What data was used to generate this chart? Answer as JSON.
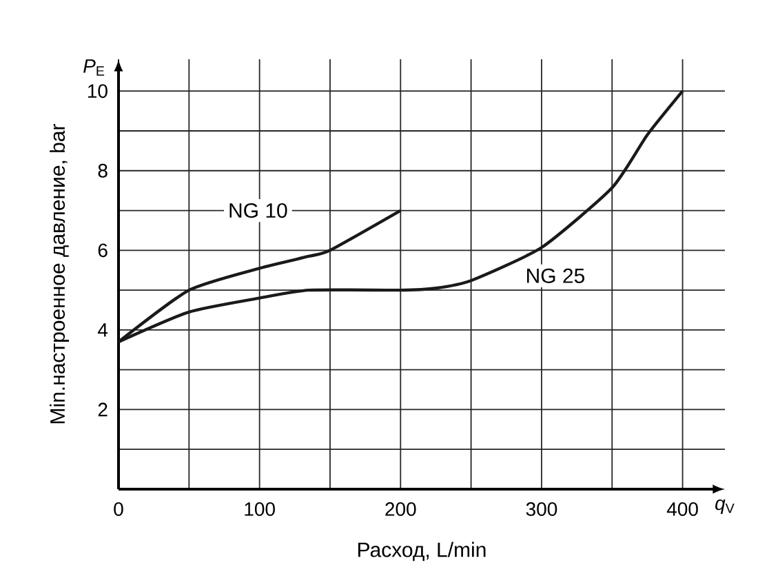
{
  "chart_data": {
    "type": "line",
    "xlabel": "Расход, L/min",
    "ylabel": "Min.настроенное давление, bar",
    "annotations": [
      "*P*$_{E}$",
      "*q*$_{V}$"
    ],
    "xlim": [
      0,
      430
    ],
    "ylim": [
      0,
      10.8
    ],
    "xticks": [
      0,
      {
        "value": 50,
        "label": null
      },
      100,
      {
        "value": 150,
        "label": null
      },
      200,
      {
        "value": 250,
        "label": null
      },
      300,
      {
        "value": 350,
        "label": null
      },
      400
    ],
    "yticks": [
      {
        "value": 1,
        "label": null
      },
      2,
      {
        "value": 3,
        "label": null
      },
      4,
      {
        "value": 5,
        "label": null
      },
      6,
      {
        "value": 7,
        "label": null
      },
      8,
      {
        "value": 9,
        "label": null
      },
      10
    ],
    "grid": true,
    "legend": false,
    "marker": "none",
    "line_style": "solid",
    "series": [
      {
        "name": "NG 10",
        "color": "#1a1a1a",
        "x": [
          0,
          50,
          100,
          135,
          150,
          200
        ],
        "values": [
          3.7,
          5.0,
          5.55,
          5.85,
          6.0,
          7.0
        ]
      },
      {
        "name": "NG 25",
        "color": "#1a1a1a",
        "x": [
          0,
          50,
          100,
          135,
          200,
          225,
          250,
          300,
          350,
          375,
          400
        ],
        "values": [
          3.7,
          4.45,
          4.8,
          5.0,
          5.0,
          5.05,
          5.24,
          6.07,
          7.57,
          8.9,
          10.0
        ]
      }
    ]
  }
}
